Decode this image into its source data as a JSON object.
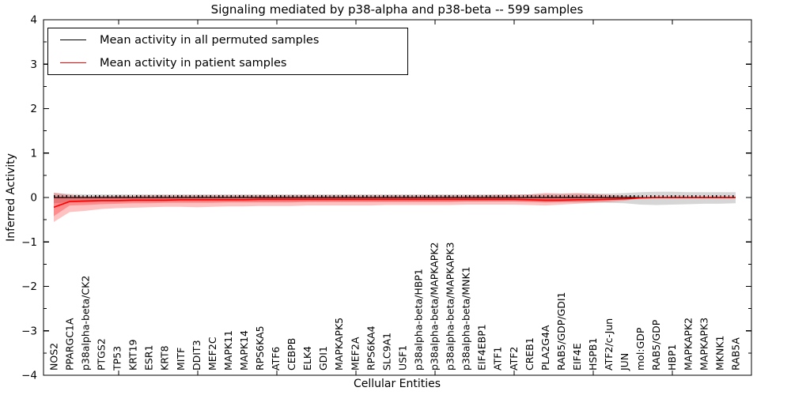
{
  "colors": {
    "patient_line": "#ff0000",
    "permuted_line": "#000000",
    "patient_band": "rgba(255,0,0,0.24)",
    "patient_band_inner": "rgba(255,0,0,0.28)",
    "permuted_band": "rgba(128,128,128,0.32)",
    "axis": "#000000",
    "background": "#ffffff"
  },
  "chart_data": {
    "type": "line",
    "title": "Signaling mediated by p38-alpha and p38-beta -- 599 samples",
    "xlabel": "Cellular Entities",
    "ylabel": "Inferred Activity",
    "ylim": [
      -4,
      4
    ],
    "yticks": [
      4,
      3,
      2,
      1,
      0,
      -1,
      -2,
      -3,
      -4
    ],
    "y_minor_step": 0.5,
    "grid": false,
    "legend_position": "upper left",
    "zero_reference": {
      "value": 0,
      "style": "dotted"
    },
    "categories": [
      "NOS2",
      "PPARGC1A",
      "p38alpha-beta/CK2",
      "PTGS2",
      "TP53",
      "KRT19",
      "ESR1",
      "KRT8",
      "MITF",
      "DDIT3",
      "MEF2C",
      "MAPK11",
      "MAPK14",
      "RPS6KA5",
      "ATF6",
      "CEBPB",
      "ELK4",
      "GDI1",
      "MAPKAPK5",
      "MEF2A",
      "RPS6KA4",
      "SLC9A1",
      "USF1",
      "p38alpha-beta/HBP1",
      "p38alpha-beta/MAPKAPK2",
      "p38alpha-beta/MAPKAPK3",
      "p38alpha-beta/MNK1",
      "EIF4EBP1",
      "ATF1",
      "ATF2",
      "CREB1",
      "PLA2G4A",
      "RAB5/GDP/GDI1",
      "EIF4E",
      "HSPB1",
      "ATF2/c-Jun",
      "JUN",
      "mol:GDP",
      "RAB5/GDP",
      "HBP1",
      "MAPKAPK2",
      "MAPKAPK3",
      "MKNK1",
      "RAB5A"
    ],
    "series": [
      {
        "name": "Mean activity in all permuted samples",
        "color": "#000000",
        "values": [
          0,
          0,
          0,
          0,
          0,
          0,
          0,
          0,
          0,
          0,
          0,
          0,
          0,
          0,
          0,
          0,
          0,
          0,
          0,
          0,
          0,
          0,
          0,
          0,
          0,
          0,
          0,
          0,
          0,
          0,
          0,
          0,
          0,
          0,
          0,
          0,
          0,
          0,
          0,
          0,
          0,
          0,
          0,
          0
        ]
      },
      {
        "name": "Mean activity in patient samples",
        "color": "#ff0000",
        "values": [
          -0.22,
          -0.09,
          -0.08,
          -0.07,
          -0.07,
          -0.06,
          -0.06,
          -0.06,
          -0.05,
          -0.05,
          -0.05,
          -0.05,
          -0.05,
          -0.04,
          -0.04,
          -0.04,
          -0.04,
          -0.04,
          -0.04,
          -0.04,
          -0.04,
          -0.04,
          -0.04,
          -0.04,
          -0.04,
          -0.04,
          -0.04,
          -0.04,
          -0.04,
          -0.04,
          -0.05,
          -0.06,
          -0.06,
          -0.05,
          -0.05,
          -0.04,
          -0.03,
          -0.01,
          0,
          0,
          0,
          0,
          0,
          0
        ]
      }
    ],
    "bands": [
      {
        "name": "permuted-range",
        "color": "rgba(128,128,128,0.32)",
        "hi": [
          0.1,
          0.08,
          0.07,
          0.07,
          0.07,
          0.07,
          0.07,
          0.07,
          0.07,
          0.07,
          0.07,
          0.07,
          0.07,
          0.07,
          0.07,
          0.07,
          0.07,
          0.07,
          0.07,
          0.07,
          0.07,
          0.07,
          0.07,
          0.07,
          0.07,
          0.07,
          0.07,
          0.07,
          0.07,
          0.07,
          0.07,
          0.08,
          0.08,
          0.09,
          0.09,
          0.09,
          0.1,
          0.12,
          0.13,
          0.13,
          0.12,
          0.12,
          0.12,
          0.12
        ],
        "lo": [
          -0.13,
          -0.11,
          -0.1,
          -0.09,
          -0.09,
          -0.09,
          -0.09,
          -0.09,
          -0.09,
          -0.09,
          -0.09,
          -0.09,
          -0.09,
          -0.09,
          -0.09,
          -0.09,
          -0.09,
          -0.09,
          -0.09,
          -0.09,
          -0.09,
          -0.09,
          -0.09,
          -0.09,
          -0.09,
          -0.09,
          -0.09,
          -0.09,
          -0.09,
          -0.09,
          -0.09,
          -0.1,
          -0.1,
          -0.11,
          -0.11,
          -0.12,
          -0.13,
          -0.16,
          -0.17,
          -0.16,
          -0.15,
          -0.14,
          -0.14,
          -0.13
        ]
      },
      {
        "name": "patient-range-outer",
        "color": "rgba(255,0,0,0.24)",
        "hi": [
          0.11,
          0.06,
          0.03,
          0.03,
          0.04,
          0.04,
          0.05,
          0.05,
          0.05,
          0.05,
          0.05,
          0.05,
          0.05,
          0.05,
          0.05,
          0.05,
          0.05,
          0.05,
          0.05,
          0.05,
          0.05,
          0.05,
          0.05,
          0.05,
          0.05,
          0.05,
          0.05,
          0.05,
          0.06,
          0.06,
          0.07,
          0.1,
          0.09,
          0.1,
          0.08,
          0.06,
          0.04,
          0.01,
          0,
          0,
          0,
          0,
          0,
          0
        ],
        "lo": [
          -0.55,
          -0.33,
          -0.3,
          -0.26,
          -0.24,
          -0.23,
          -0.22,
          -0.21,
          -0.21,
          -0.22,
          -0.21,
          -0.2,
          -0.2,
          -0.19,
          -0.19,
          -0.19,
          -0.18,
          -0.18,
          -0.18,
          -0.18,
          -0.18,
          -0.17,
          -0.17,
          -0.17,
          -0.17,
          -0.17,
          -0.16,
          -0.16,
          -0.16,
          -0.16,
          -0.17,
          -0.18,
          -0.16,
          -0.14,
          -0.12,
          -0.1,
          -0.07,
          -0.02,
          0,
          0,
          0,
          0,
          0,
          0
        ]
      },
      {
        "name": "patient-range-inner",
        "color": "rgba(255,0,0,0.28)",
        "hi": [
          0.02,
          0.01,
          0.0,
          0.0,
          0.0,
          0.01,
          0.01,
          0.01,
          0.01,
          0.01,
          0.01,
          0.01,
          0.01,
          0.01,
          0.01,
          0.01,
          0.01,
          0.01,
          0.01,
          0.01,
          0.01,
          0.01,
          0.01,
          0.01,
          0.01,
          0.01,
          0.01,
          0.01,
          0.01,
          0.01,
          0.01,
          0.02,
          0.02,
          0.02,
          0.02,
          0.01,
          0.01,
          0.0,
          0,
          0,
          0,
          0,
          0,
          0
        ],
        "lo": [
          -0.42,
          -0.18,
          -0.17,
          -0.15,
          -0.14,
          -0.13,
          -0.13,
          -0.12,
          -0.12,
          -0.12,
          -0.12,
          -0.11,
          -0.11,
          -0.11,
          -0.11,
          -0.11,
          -0.1,
          -0.1,
          -0.1,
          -0.1,
          -0.1,
          -0.1,
          -0.1,
          -0.1,
          -0.1,
          -0.1,
          -0.09,
          -0.09,
          -0.09,
          -0.09,
          -0.1,
          -0.11,
          -0.1,
          -0.09,
          -0.08,
          -0.06,
          -0.04,
          -0.01,
          0,
          0,
          0,
          0,
          0,
          0
        ]
      }
    ]
  }
}
